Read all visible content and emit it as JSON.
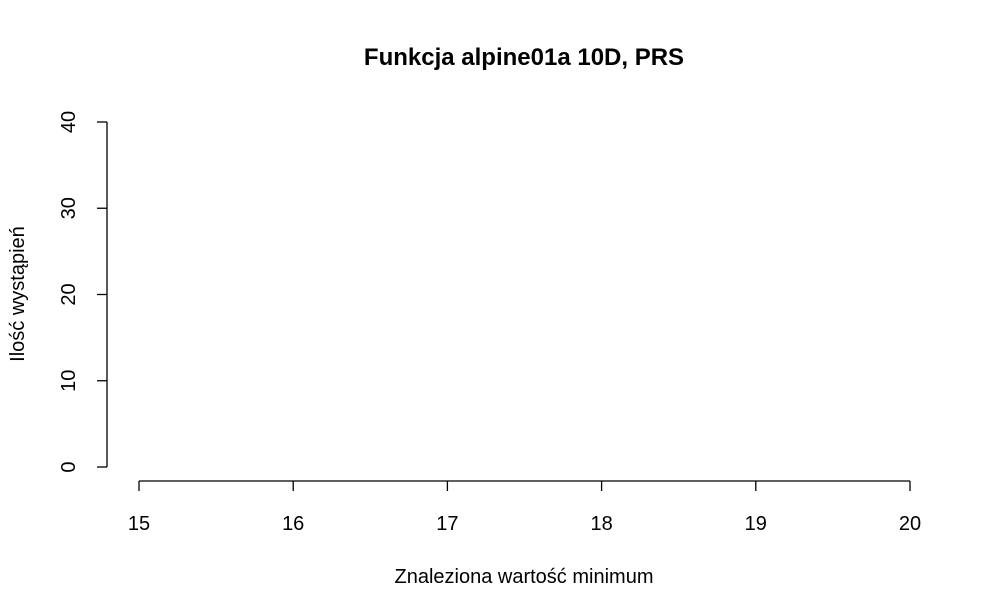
{
  "chart_data": {
    "type": "bar",
    "title": "Funkcja alpine01a 10D, PRS",
    "xlabel": "Znaleziona wartość minimum",
    "ylabel": "Ilość wystąpień",
    "xlim": [
      15,
      20
    ],
    "ylim": [
      0,
      40
    ],
    "xticks": [
      "15",
      "16",
      "17",
      "18",
      "19",
      "20"
    ],
    "yticks": [
      "0",
      "10",
      "20",
      "30",
      "40"
    ],
    "categories": [],
    "values": [],
    "grid": false
  }
}
